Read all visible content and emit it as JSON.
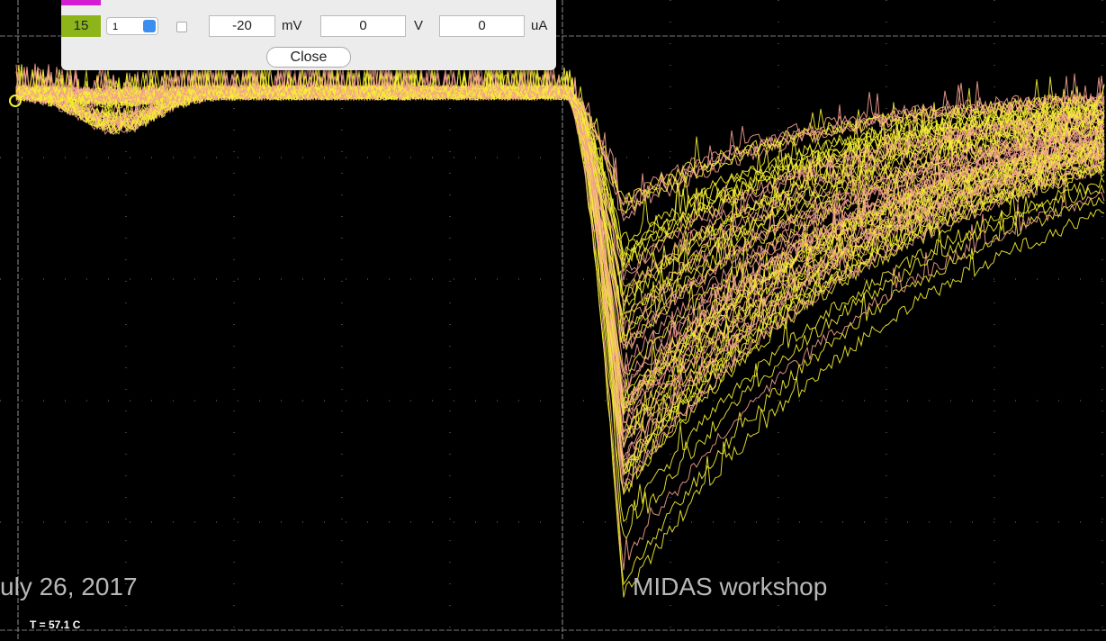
{
  "dialog": {
    "rows": [
      {
        "channel": "15",
        "select": "1",
        "value1": "-20",
        "unit1": "mV",
        "value2": "0",
        "unit2": "V",
        "value3": "0",
        "unit3": "uA"
      }
    ],
    "close_button": "Close"
  },
  "footer": {
    "date": "uly 26, 2017",
    "event": "MIDAS workshop"
  },
  "status": {
    "temperature": "T = 57.1 C"
  }
}
